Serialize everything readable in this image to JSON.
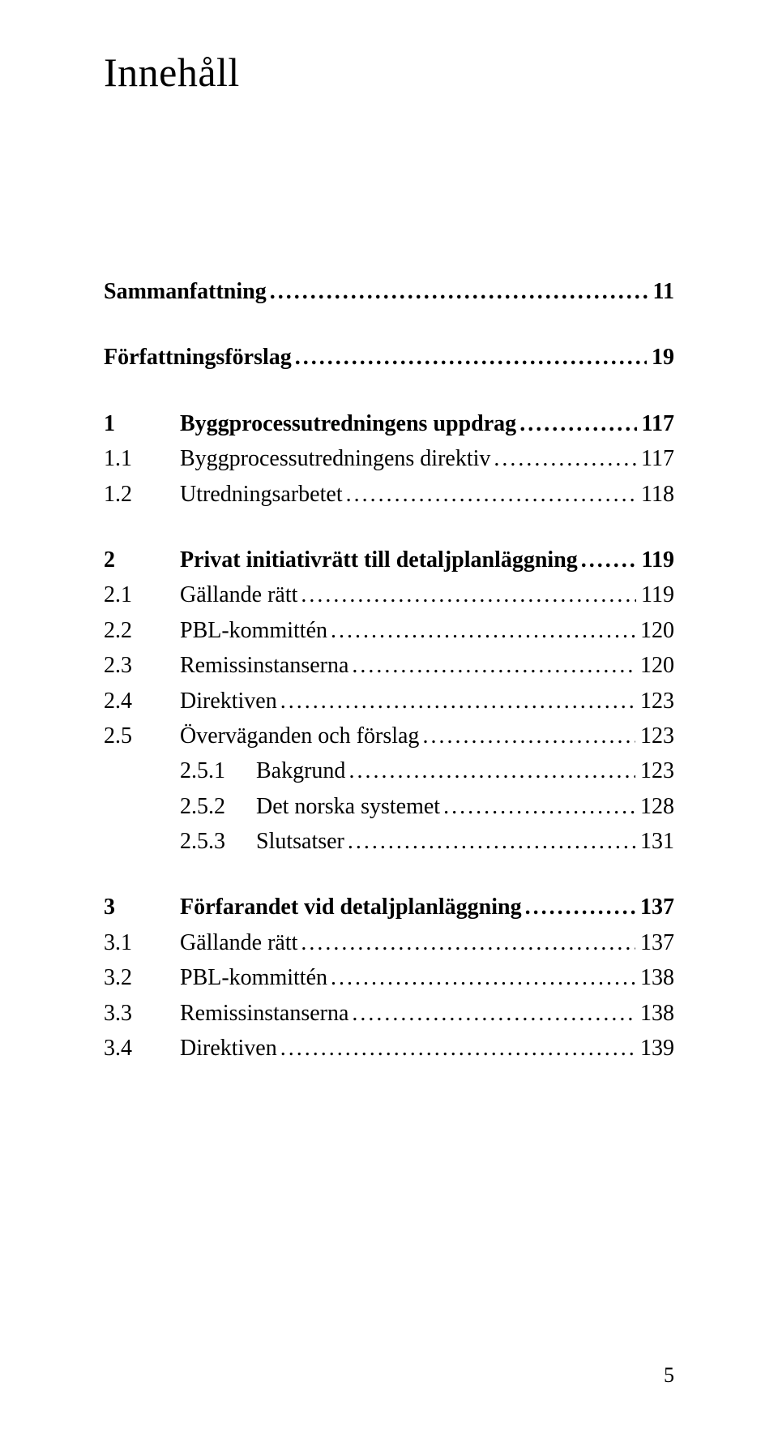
{
  "title": "Innehåll",
  "sections": {
    "summary": {
      "label": "Sammanfattning",
      "page": "11"
    },
    "proposals": {
      "label": "Författningsförslag",
      "page": "19"
    }
  },
  "chapters": {
    "c1": {
      "num": "1",
      "label": "Byggprocessutredningens uppdrag",
      "page": "117",
      "e1": {
        "num": "1.1",
        "label": "Byggprocessutredningens direktiv",
        "page": "117"
      },
      "e2": {
        "num": "1.2",
        "label": "Utredningsarbetet",
        "page": "118"
      }
    },
    "c2": {
      "num": "2",
      "label": "Privat initiativrätt till detaljplanläggning",
      "page": "119",
      "e1": {
        "num": "2.1",
        "label": "Gällande rätt",
        "page": "119"
      },
      "e2": {
        "num": "2.2",
        "label": "PBL-kommittén",
        "page": "120"
      },
      "e3": {
        "num": "2.3",
        "label": "Remissinstanserna",
        "page": "120"
      },
      "e4": {
        "num": "2.4",
        "label": "Direktiven",
        "page": "123"
      },
      "e5": {
        "num": "2.5",
        "label": "Överväganden och förslag",
        "page": "123"
      },
      "e5_1": {
        "num": "2.5.1",
        "label": "Bakgrund",
        "page": "123"
      },
      "e5_2": {
        "num": "2.5.2",
        "label": "Det norska systemet",
        "page": "128"
      },
      "e5_3": {
        "num": "2.5.3",
        "label": "Slutsatser",
        "page": "131"
      }
    },
    "c3": {
      "num": "3",
      "label": "Förfarandet vid detaljplanläggning",
      "page": "137",
      "e1": {
        "num": "3.1",
        "label": "Gällande rätt",
        "page": "137"
      },
      "e2": {
        "num": "3.2",
        "label": "PBL-kommittén",
        "page": "138"
      },
      "e3": {
        "num": "3.3",
        "label": "Remissinstanserna",
        "page": "138"
      },
      "e4": {
        "num": "3.4",
        "label": "Direktiven",
        "page": "139"
      }
    }
  },
  "pageNumber": "5"
}
